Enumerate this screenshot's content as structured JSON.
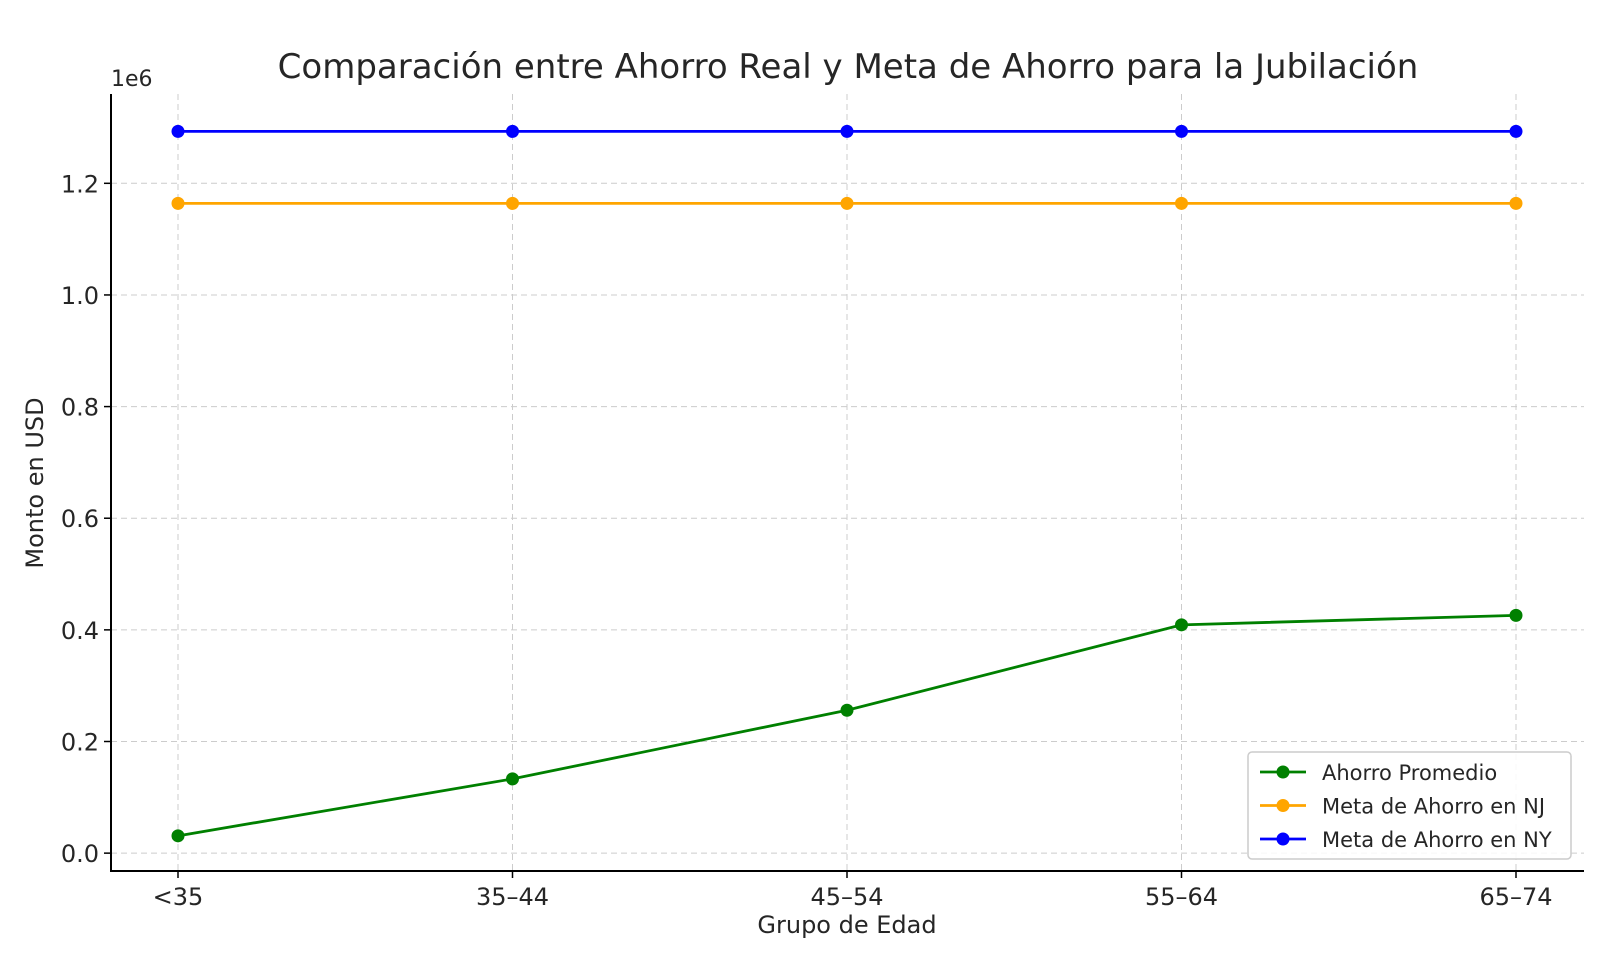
{
  "chart_data": {
    "type": "line",
    "title": "Comparación entre Ahorro Real y Meta de Ahorro para la Jubilación",
    "xlabel": "Grupo de Edad",
    "ylabel": "Monto en USD",
    "y_offset_label": "1e6",
    "categories": [
      "<35",
      "35–44",
      "45–54",
      "55–64",
      "65–74"
    ],
    "ylim": [
      -0.032,
      1.36
    ],
    "yticks": [
      {
        "value": 0.0,
        "label": "0.0"
      },
      {
        "value": 0.2,
        "label": "0.2"
      },
      {
        "value": 0.4,
        "label": "0.4"
      },
      {
        "value": 0.6,
        "label": "0.6"
      },
      {
        "value": 0.8,
        "label": "0.8"
      },
      {
        "value": 1.0,
        "label": "1.0"
      },
      {
        "value": 1.2,
        "label": "1.2"
      }
    ],
    "grid": true,
    "legend_position": "bottom-right",
    "series": [
      {
        "name": "Ahorro Promedio",
        "color": "#008000",
        "values": [
          0.031,
          0.133,
          0.256,
          0.409,
          0.426
        ]
      },
      {
        "name": "Meta de Ahorro en NJ",
        "color": "#ffa500",
        "values": [
          1.164,
          1.164,
          1.164,
          1.164,
          1.164
        ]
      },
      {
        "name": "Meta de Ahorro en NY",
        "color": "#0000ff",
        "values": [
          1.293,
          1.293,
          1.293,
          1.293,
          1.293
        ]
      }
    ]
  }
}
